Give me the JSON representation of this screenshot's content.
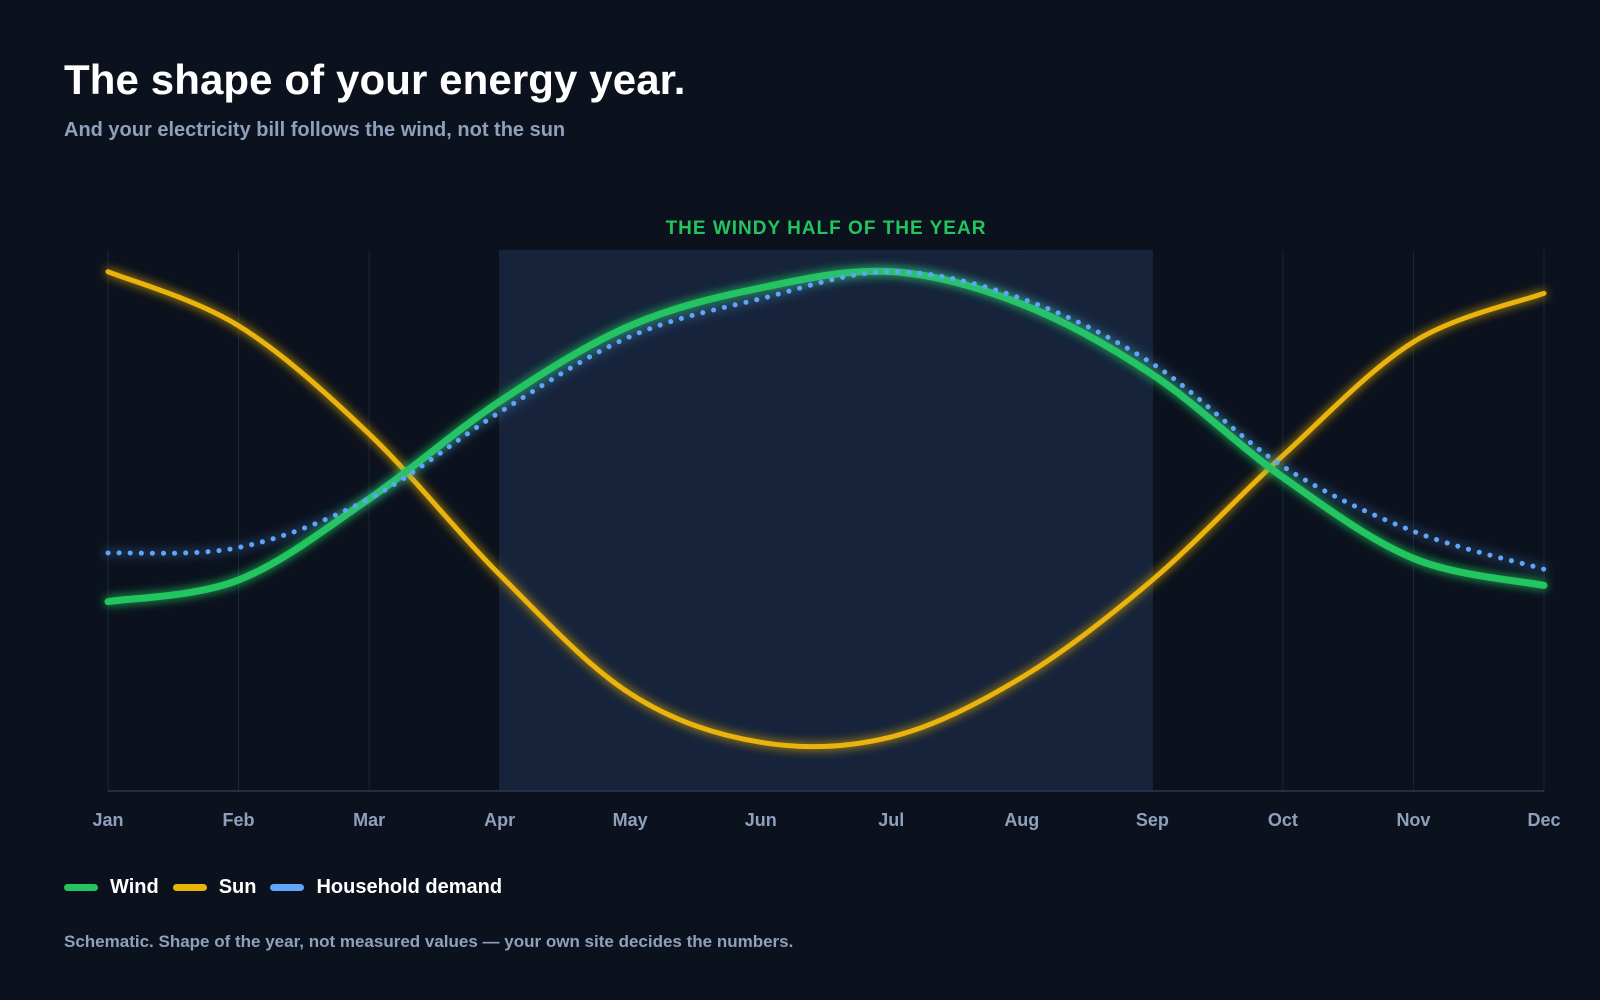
{
  "header": {
    "title": "The shape of your energy year.",
    "subtitle": "And your electricity bill follows the wind, not the sun"
  },
  "footnote": "Schematic. Shape of the year, not measured values — your own site decides the numbers.",
  "colors": {
    "background": "#0b111d",
    "wind": "#22c55e",
    "sun": "#eab308",
    "demand": "#60a5fa",
    "band": "#16233a",
    "band_label": "#22c55e",
    "tick_label": "#8fa0bd"
  },
  "chart_data": {
    "type": "line",
    "title": "",
    "xlabel": "",
    "ylabel": "",
    "categories": [
      "Jan",
      "Feb",
      "Mar",
      "Apr",
      "May",
      "Jun",
      "Jul",
      "Aug",
      "Sep",
      "Oct",
      "Nov",
      "Dec"
    ],
    "ylim": [
      0,
      100
    ],
    "grid": true,
    "legend_position": "bottom-left",
    "series": [
      {
        "name": "Wind",
        "key": "wind",
        "style": "solid",
        "values": [
          35,
          39,
          54,
          72,
          86,
          93,
          96,
          90,
          77,
          58,
          43,
          38
        ]
      },
      {
        "name": "Sun",
        "key": "sun",
        "style": "solid",
        "values": [
          96,
          86,
          66,
          40,
          18,
          9,
          10,
          21,
          39,
          62,
          83,
          92
        ]
      },
      {
        "name": "Household demand",
        "key": "demand",
        "style": "dotted",
        "values": [
          44,
          45,
          54,
          70,
          84,
          91,
          96,
          91,
          79,
          60,
          48,
          41
        ]
      }
    ],
    "annotations": [
      {
        "label": "THE WINDY HALF OF THE YEAR",
        "from": "Apr",
        "to": "Sep"
      }
    ]
  }
}
